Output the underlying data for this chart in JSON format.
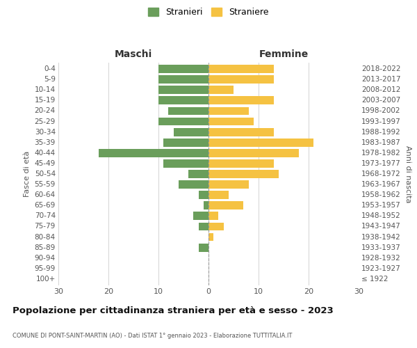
{
  "age_groups": [
    "100+",
    "95-99",
    "90-94",
    "85-89",
    "80-84",
    "75-79",
    "70-74",
    "65-69",
    "60-64",
    "55-59",
    "50-54",
    "45-49",
    "40-44",
    "35-39",
    "30-34",
    "25-29",
    "20-24",
    "15-19",
    "10-14",
    "5-9",
    "0-4"
  ],
  "birth_years": [
    "≤ 1922",
    "1923-1927",
    "1928-1932",
    "1933-1937",
    "1938-1942",
    "1943-1947",
    "1948-1952",
    "1953-1957",
    "1958-1962",
    "1963-1967",
    "1968-1972",
    "1973-1977",
    "1978-1982",
    "1983-1987",
    "1988-1992",
    "1993-1997",
    "1998-2002",
    "2003-2007",
    "2008-2012",
    "2013-2017",
    "2018-2022"
  ],
  "maschi": [
    0,
    0,
    0,
    2,
    0,
    2,
    3,
    1,
    2,
    6,
    4,
    9,
    22,
    9,
    7,
    10,
    8,
    10,
    10,
    10,
    10
  ],
  "femmine": [
    0,
    0,
    0,
    0,
    1,
    3,
    2,
    7,
    4,
    8,
    14,
    13,
    18,
    21,
    13,
    9,
    8,
    13,
    5,
    13,
    13
  ],
  "color_maschi": "#6a9e5b",
  "color_femmine": "#f5c242",
  "title": "Popolazione per cittadinanza straniera per età e sesso - 2023",
  "subtitle": "COMUNE DI PONT-SAINT-MARTIN (AO) - Dati ISTAT 1° gennaio 2023 - Elaborazione TUTTITALIA.IT",
  "xlabel_left": "Maschi",
  "xlabel_right": "Femmine",
  "ylabel_left": "Fasce di età",
  "ylabel_right": "Anni di nascita",
  "legend_maschi": "Stranieri",
  "legend_femmine": "Straniere",
  "xlim": 30,
  "background_color": "#ffffff"
}
